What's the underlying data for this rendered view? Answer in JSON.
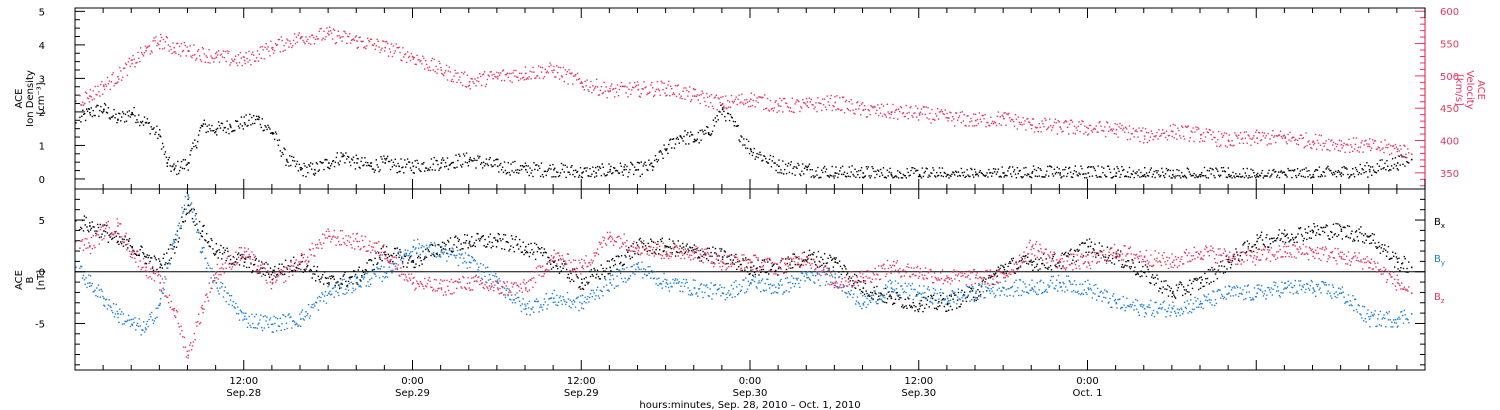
{
  "chart_data": [
    {
      "type": "scatter",
      "panel": "top",
      "ylabel_left": [
        "ACE",
        "Ion Density",
        "[cm⁻³]"
      ],
      "ylabel_right": [
        "ACE",
        "Velocity",
        "[km/s]"
      ],
      "xlim_hours": [
        0,
        96
      ],
      "ylim_left": [
        -0.3,
        5.1
      ],
      "ylim_right": [
        325,
        605
      ],
      "yticks_left": [
        "0",
        "1",
        "2",
        "3",
        "4",
        "5"
      ],
      "yticks_left_values": [
        0,
        1,
        2,
        3,
        4,
        5
      ],
      "yticks_right": [
        "350",
        "400",
        "450",
        "500",
        "550",
        "600"
      ],
      "yticks_right_values": [
        350,
        400,
        450,
        500,
        550,
        600
      ],
      "series": [
        {
          "label": "Ion Density",
          "axis": "left",
          "color": "#000000",
          "x": [
            0,
            1,
            2,
            3,
            4,
            5,
            6,
            6.5,
            7,
            8,
            9,
            10,
            11,
            12,
            13,
            14,
            15,
            16,
            17,
            18,
            19,
            20,
            21,
            22,
            23,
            24,
            26,
            28,
            30,
            32,
            34,
            36,
            37,
            38,
            39,
            40,
            41,
            42,
            43,
            44,
            45,
            46,
            48,
            50,
            52,
            54,
            56,
            58,
            60,
            62,
            64,
            66,
            68,
            70,
            72,
            74,
            76,
            78,
            80,
            82,
            84,
            86,
            88,
            90,
            92,
            94,
            95
          ],
          "y": [
            1.7,
            2.0,
            2.1,
            1.8,
            2.0,
            1.7,
            1.3,
            0.5,
            0.3,
            0.5,
            1.6,
            1.5,
            1.6,
            1.7,
            1.8,
            1.4,
            0.6,
            0.3,
            0.3,
            0.5,
            0.7,
            0.5,
            0.4,
            0.5,
            0.4,
            0.4,
            0.5,
            0.6,
            0.4,
            0.3,
            0.3,
            0.2,
            0.2,
            0.3,
            0.3,
            0.3,
            0.4,
            0.9,
            1.3,
            1.2,
            1.4,
            2.1,
            0.9,
            0.4,
            0.3,
            0.2,
            0.2,
            0.15,
            0.15,
            0.15,
            0.15,
            0.2,
            0.2,
            0.2,
            0.2,
            0.2,
            0.15,
            0.15,
            0.15,
            0.15,
            0.1,
            0.15,
            0.15,
            0.2,
            0.3,
            0.5,
            0.6
          ]
        },
        {
          "label": "Velocity",
          "axis": "right",
          "color": "#e8365f",
          "x": [
            0,
            1,
            2,
            3,
            4,
            5,
            6,
            7,
            8,
            10,
            12,
            14,
            16,
            18,
            20,
            22,
            24,
            26,
            28,
            30,
            32,
            34,
            36,
            38,
            40,
            42,
            44,
            46,
            48,
            50,
            52,
            54,
            56,
            58,
            60,
            62,
            64,
            66,
            68,
            70,
            72,
            74,
            76,
            78,
            80,
            82,
            84,
            86,
            88,
            90,
            92,
            94,
            95
          ],
          "y": [
            462,
            470,
            485,
            500,
            520,
            540,
            555,
            545,
            540,
            530,
            525,
            545,
            560,
            565,
            555,
            545,
            530,
            510,
            492,
            500,
            505,
            510,
            490,
            478,
            480,
            482,
            470,
            458,
            465,
            455,
            455,
            460,
            448,
            445,
            443,
            436,
            432,
            435,
            425,
            422,
            420,
            418,
            408,
            415,
            410,
            400,
            405,
            405,
            400,
            395,
            392,
            388,
            380
          ]
        }
      ]
    },
    {
      "type": "scatter",
      "panel": "bottom",
      "ylabel_left": [
        "ACE",
        "B",
        "[nT]"
      ],
      "xlim_hours": [
        0,
        96
      ],
      "ylim": [
        -9.5,
        8
      ],
      "yticks": [
        "-5",
        "0",
        "5"
      ],
      "yticks_values": [
        -5,
        0,
        5
      ],
      "zero_line": true,
      "legend_position": "right",
      "legend": [
        {
          "label": "B",
          "sub": "x",
          "color": "#000000"
        },
        {
          "label": "B",
          "sub": "y",
          "color": "#1e7fd6"
        },
        {
          "label": "B",
          "sub": "z",
          "color": "#e8365f"
        }
      ],
      "series": [
        {
          "label": "Bx",
          "color": "#000000",
          "x": [
            0,
            1,
            2,
            3,
            4,
            5,
            6,
            7,
            8,
            9,
            10,
            12,
            14,
            16,
            18,
            20,
            22,
            24,
            26,
            28,
            30,
            32,
            34,
            36,
            38,
            40,
            42,
            44,
            46,
            48,
            50,
            52,
            54,
            56,
            58,
            60,
            62,
            64,
            66,
            68,
            70,
            72,
            74,
            76,
            78,
            80,
            82,
            84,
            86,
            88,
            90,
            92,
            94,
            95
          ],
          "y": [
            5.0,
            4.5,
            4.0,
            3.0,
            2.5,
            1.5,
            0.5,
            2.5,
            6.5,
            4.0,
            2.0,
            1.0,
            0.0,
            1.0,
            -1.0,
            -0.5,
            2.0,
            1.0,
            2.5,
            3.0,
            3.0,
            2.5,
            1.0,
            -1.0,
            0.5,
            2.5,
            2.5,
            2.0,
            1.5,
            0.5,
            0.5,
            1.5,
            1.0,
            -1.5,
            -2.5,
            -3.0,
            -3.0,
            -2.0,
            0.5,
            1.0,
            1.0,
            2.5,
            1.5,
            0.0,
            -2.0,
            -1.0,
            1.0,
            3.0,
            3.5,
            4.0,
            4.0,
            3.5,
            1.0,
            0.5
          ]
        },
        {
          "label": "By",
          "color": "#1e7fd6",
          "x": [
            0,
            1,
            2,
            3,
            4,
            5,
            6,
            7,
            8,
            9,
            10,
            12,
            14,
            16,
            18,
            20,
            22,
            24,
            26,
            28,
            30,
            32,
            34,
            36,
            38,
            40,
            42,
            44,
            46,
            48,
            50,
            52,
            54,
            56,
            58,
            60,
            62,
            64,
            66,
            68,
            70,
            72,
            74,
            76,
            78,
            80,
            82,
            84,
            86,
            88,
            90,
            92,
            94,
            95
          ],
          "y": [
            0.5,
            -1.0,
            -2.5,
            -4.0,
            -5.0,
            -5.5,
            -3.0,
            3.0,
            7.5,
            2.0,
            -1.0,
            -4.5,
            -5.0,
            -4.5,
            -2.0,
            -1.0,
            0.0,
            2.5,
            2.0,
            1.0,
            -1.0,
            -3.5,
            -2.5,
            -3.0,
            -1.0,
            0.5,
            -1.0,
            -1.5,
            -2.0,
            -1.0,
            -1.5,
            -0.5,
            -0.5,
            -3.0,
            -1.5,
            -2.0,
            -2.5,
            -2.0,
            -1.5,
            -1.5,
            -1.0,
            -1.5,
            -3.0,
            -3.5,
            -3.5,
            -3.0,
            -2.0,
            -2.0,
            -1.5,
            -1.5,
            -2.0,
            -4.5,
            -4.5,
            -4.0
          ]
        },
        {
          "label": "Bz",
          "color": "#e8365f",
          "x": [
            0,
            1,
            2,
            3,
            4,
            5,
            6,
            7,
            8,
            9,
            10,
            12,
            14,
            16,
            18,
            20,
            22,
            24,
            26,
            28,
            30,
            32,
            34,
            36,
            38,
            40,
            42,
            44,
            46,
            48,
            50,
            52,
            54,
            56,
            58,
            60,
            62,
            64,
            66,
            68,
            70,
            72,
            74,
            76,
            78,
            80,
            82,
            84,
            86,
            88,
            90,
            92,
            94,
            95
          ],
          "y": [
            3.0,
            2.5,
            4.0,
            4.5,
            2.0,
            0.5,
            -1.0,
            -3.5,
            -8.0,
            -3.5,
            0.0,
            2.0,
            -1.0,
            1.0,
            3.5,
            3.0,
            2.0,
            -1.0,
            -1.5,
            -1.0,
            -1.5,
            -1.5,
            1.5,
            0.5,
            3.5,
            2.5,
            2.0,
            2.0,
            1.0,
            1.0,
            0.5,
            1.5,
            -1.0,
            -0.5,
            0.5,
            0.0,
            -0.5,
            -0.5,
            -0.5,
            2.5,
            1.0,
            1.0,
            2.0,
            1.5,
            1.0,
            2.0,
            1.5,
            1.5,
            2.0,
            2.0,
            1.5,
            1.0,
            -1.0,
            -2.0
          ]
        }
      ]
    }
  ],
  "x_axis": {
    "ticks": [
      {
        "hours": 12,
        "time": "12:00",
        "date": "Sep.28"
      },
      {
        "hours": 24,
        "time": "0:00",
        "date": "Sep.29"
      },
      {
        "hours": 36,
        "time": "12:00",
        "date": "Sep.29"
      },
      {
        "hours": 48,
        "time": "0:00",
        "date": "Sep.30"
      },
      {
        "hours": 60,
        "time": "12:00",
        "date": "Sep.30"
      },
      {
        "hours": 72,
        "time": "0:00",
        "date": "Oct. 1"
      }
    ],
    "label": "hours:minutes, Sep. 28, 2010 – Oct. 1, 2010",
    "range_hours": [
      0,
      96
    ]
  },
  "colors": {
    "density": "#000000",
    "velocity": "#e8365f",
    "bx": "#000000",
    "by": "#1e7fd6",
    "bz": "#e8365f"
  }
}
